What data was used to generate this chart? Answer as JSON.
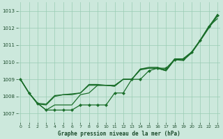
{
  "xlabel": "Graphe pression niveau de la mer (hPa)",
  "background_color": "#cce8dc",
  "plot_bg_color": "#cce8dc",
  "grid_color": "#99ccb3",
  "line_color": "#1a6e2a",
  "x_ticks": [
    0,
    1,
    2,
    3,
    4,
    5,
    6,
    7,
    8,
    9,
    10,
    11,
    12,
    13,
    14,
    15,
    16,
    17,
    18,
    19,
    20,
    21,
    22,
    23
  ],
  "y_ticks": [
    1007,
    1008,
    1009,
    1010,
    1011,
    1012,
    1013
  ],
  "ylim": [
    1006.5,
    1013.5
  ],
  "xlim": [
    -0.3,
    23.3
  ],
  "series": [
    {
      "y": [
        1009.0,
        1008.2,
        1007.6,
        1007.2,
        1007.5,
        1007.5,
        1007.5,
        1008.1,
        1008.2,
        1008.65,
        1008.65,
        1008.6,
        1009.0,
        1009.0,
        1009.6,
        1009.65,
        1009.65,
        1009.5,
        1010.15,
        1010.1,
        1010.55,
        1011.3,
        1012.1,
        1012.55
      ],
      "marker": false,
      "lw": 0.9
    },
    {
      "y": [
        1009.0,
        1008.2,
        1007.6,
        1007.2,
        1007.2,
        1007.2,
        1007.2,
        1007.5,
        1007.5,
        1007.5,
        1007.5,
        1008.2,
        1008.2,
        1009.0,
        1009.0,
        1009.5,
        1009.65,
        1009.65,
        1010.15,
        1010.2,
        1010.6,
        1011.3,
        1012.1,
        1012.75
      ],
      "marker": true,
      "lw": 0.9
    },
    {
      "y": [
        1009.0,
        1008.2,
        1007.55,
        1007.5,
        1008.0,
        1008.1,
        1008.15,
        1008.2,
        1008.7,
        1008.7,
        1008.65,
        1008.65,
        1009.0,
        1009.0,
        1009.6,
        1009.7,
        1009.7,
        1009.55,
        1010.2,
        1010.2,
        1010.6,
        1011.3,
        1012.05,
        1012.8
      ],
      "marker": false,
      "lw": 0.9
    },
    {
      "y": [
        1009.0,
        1008.2,
        1007.6,
        1007.55,
        1008.05,
        1008.1,
        1008.1,
        1008.2,
        1008.65,
        1008.65,
        1008.65,
        1008.6,
        1009.0,
        1009.0,
        1009.55,
        1009.65,
        1009.65,
        1009.5,
        1010.15,
        1010.15,
        1010.55,
        1011.25,
        1012.0,
        1012.7
      ],
      "marker": false,
      "lw": 0.9
    }
  ]
}
